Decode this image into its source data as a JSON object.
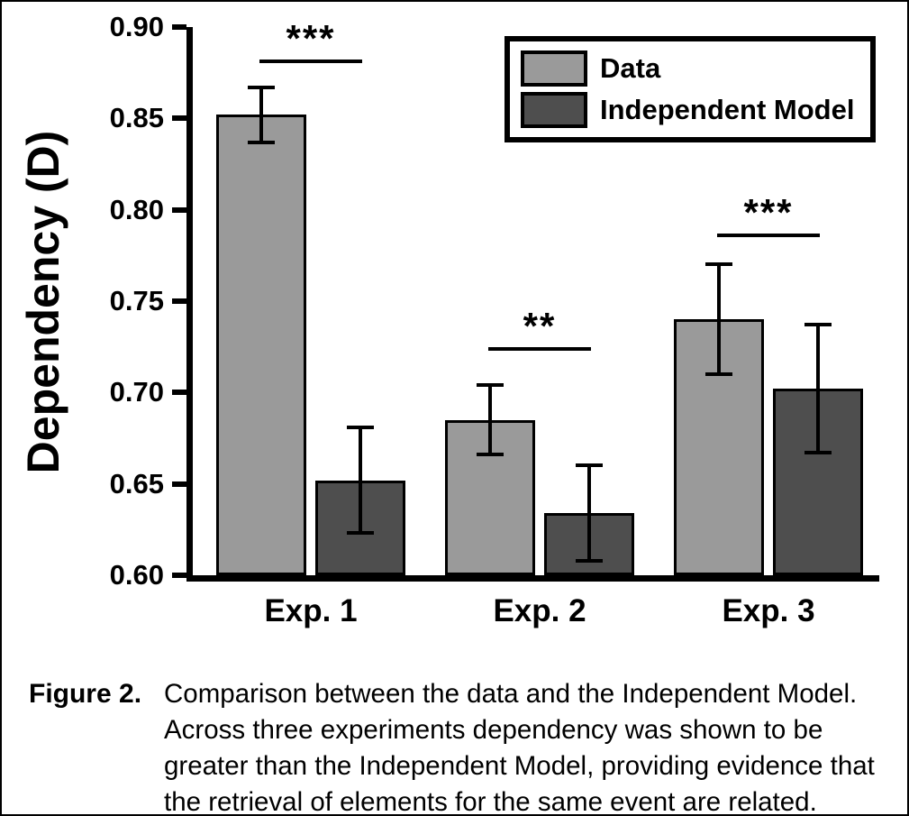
{
  "figure": {
    "caption_label": "Figure 2.",
    "caption_text": "Comparison between the data and the Independent Model. Across three experiments dependency was shown to be greater than the Independent Model, providing evidence that the retrieval of elements for the same event are related."
  },
  "chart_data": {
    "type": "bar",
    "title": "",
    "ylabel": "Dependency (D)",
    "xlabel": "",
    "ylim": [
      0.6,
      0.9
    ],
    "yticks": [
      0.9,
      0.85,
      0.8,
      0.75,
      0.7,
      0.65,
      0.6
    ],
    "categories": [
      "Exp. 1",
      "Exp. 2",
      "Exp. 3"
    ],
    "series": [
      {
        "name": "Data",
        "color": "#9a9a9a",
        "values": [
          0.852,
          0.685,
          0.74
        ],
        "errors": [
          0.015,
          0.019,
          0.03
        ]
      },
      {
        "name": "Independent Model",
        "color": "#4e4e4e",
        "values": [
          0.652,
          0.634,
          0.702
        ],
        "errors": [
          0.029,
          0.026,
          0.035
        ]
      }
    ],
    "significance": [
      {
        "category": "Exp. 1",
        "label": "***",
        "line_y": 0.882
      },
      {
        "category": "Exp. 2",
        "label": "**",
        "line_y": 0.725
      },
      {
        "category": "Exp. 3",
        "label": "***",
        "line_y": 0.787
      }
    ],
    "legend": {
      "position": "top-right",
      "entries": [
        "Data",
        "Independent Model"
      ]
    },
    "grid": false,
    "error_bars": true
  }
}
